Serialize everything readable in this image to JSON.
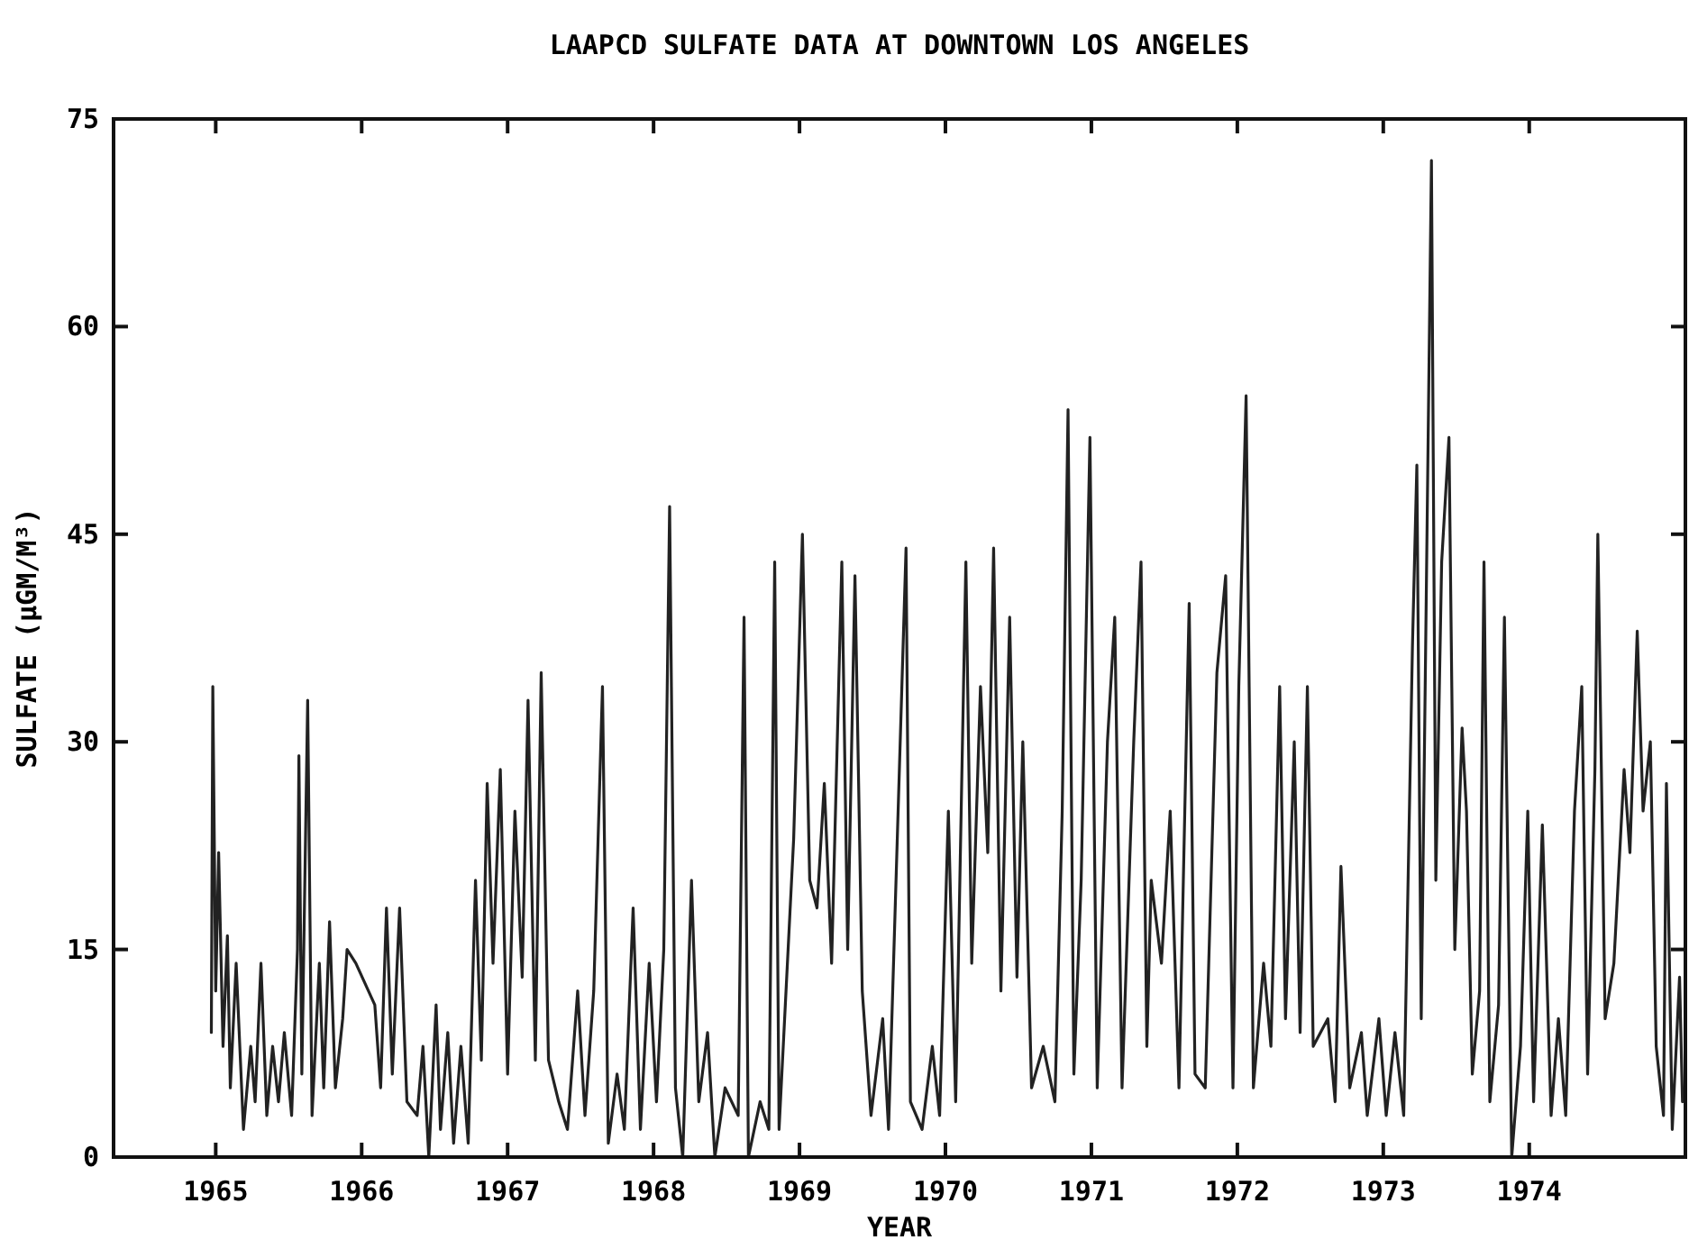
{
  "chart_data": {
    "type": "line",
    "title": "LAAPCD SULFATE DATA AT DOWNTOWN LOS ANGELES",
    "xlabel": "YEAR",
    "ylabel": "SULFATE (μGM/M³)",
    "xlim": [
      1964.3,
      1975.07
    ],
    "xticks": [
      {
        "value": 1965,
        "label": "1965"
      },
      {
        "value": 1966,
        "label": "1966"
      },
      {
        "value": 1967,
        "label": "1967"
      },
      {
        "value": 1968,
        "label": "1968"
      },
      {
        "value": 1969,
        "label": "1969"
      },
      {
        "value": 1970,
        "label": "1970"
      },
      {
        "value": 1971,
        "label": "1971"
      },
      {
        "value": 1972,
        "label": "1972"
      },
      {
        "value": 1973,
        "label": "1973"
      },
      {
        "value": 1974,
        "label": "1974"
      }
    ],
    "ylim": [
      0,
      75
    ],
    "yticks": [
      0,
      15,
      30,
      45,
      60,
      75
    ],
    "grid": false,
    "marker": "none",
    "line_style": "solid",
    "x": [
      1964.97,
      1964.98,
      1965.0,
      1965.02,
      1965.05,
      1965.08,
      1965.1,
      1965.14,
      1965.19,
      1965.24,
      1965.27,
      1965.31,
      1965.35,
      1965.39,
      1965.43,
      1965.47,
      1965.52,
      1965.56,
      1965.57,
      1965.59,
      1965.63,
      1965.66,
      1965.71,
      1965.74,
      1965.78,
      1965.82,
      1965.87,
      1965.9,
      1965.96,
      1966.09,
      1966.13,
      1966.17,
      1966.21,
      1966.26,
      1966.31,
      1966.38,
      1966.42,
      1966.46,
      1966.51,
      1966.54,
      1966.59,
      1966.63,
      1966.68,
      1966.73,
      1966.78,
      1966.82,
      1966.86,
      1966.9,
      1966.95,
      1967.0,
      1967.05,
      1967.1,
      1967.14,
      1967.19,
      1967.23,
      1967.28,
      1967.35,
      1967.41,
      1967.48,
      1967.53,
      1967.59,
      1967.65,
      1967.69,
      1967.75,
      1967.8,
      1967.86,
      1967.91,
      1967.97,
      1968.02,
      1968.07,
      1968.11,
      1968.15,
      1968.2,
      1968.26,
      1968.31,
      1968.37,
      1968.42,
      1968.49,
      1968.58,
      1968.62,
      1968.65,
      1968.73,
      1968.79,
      1968.83,
      1968.86,
      1968.96,
      1969.02,
      1969.07,
      1969.12,
      1969.17,
      1969.22,
      1969.29,
      1969.33,
      1969.38,
      1969.43,
      1969.49,
      1969.57,
      1969.61,
      1969.73,
      1969.76,
      1969.84,
      1969.91,
      1969.96,
      1970.02,
      1970.07,
      1970.14,
      1970.18,
      1970.24,
      1970.29,
      1970.33,
      1970.38,
      1970.44,
      1970.49,
      1970.53,
      1970.59,
      1970.67,
      1970.75,
      1970.8,
      1970.84,
      1970.88,
      1970.93,
      1970.99,
      1971.04,
      1971.11,
      1971.16,
      1971.21,
      1971.29,
      1971.34,
      1971.38,
      1971.41,
      1971.48,
      1971.54,
      1971.6,
      1971.67,
      1971.71,
      1971.78,
      1971.86,
      1971.92,
      1971.97,
      1972.01,
      1972.06,
      1972.11,
      1972.18,
      1972.23,
      1972.29,
      1972.33,
      1972.39,
      1972.43,
      1972.48,
      1972.52,
      1972.62,
      1972.67,
      1972.71,
      1972.77,
      1972.85,
      1972.89,
      1972.97,
      1973.02,
      1973.08,
      1973.14,
      1973.2,
      1973.23,
      1973.26,
      1973.33,
      1973.36,
      1973.4,
      1973.45,
      1973.49,
      1973.54,
      1973.57,
      1973.61,
      1973.66,
      1973.69,
      1973.73,
      1973.79,
      1973.83,
      1973.88,
      1973.94,
      1973.99,
      1974.03,
      1974.09,
      1974.15,
      1974.2,
      1974.25,
      1974.31,
      1974.36,
      1974.4,
      1974.45,
      1974.47,
      1974.52,
      1974.58,
      1974.65,
      1974.69,
      1974.74,
      1974.78,
      1974.83,
      1974.87,
      1974.92,
      1974.94,
      1974.98,
      1975.03,
      1975.05
    ],
    "series": [
      {
        "color": "#222222",
        "values": [
          9,
          34,
          12,
          22,
          8,
          16,
          5,
          14,
          2,
          8,
          4,
          14,
          3,
          8,
          4,
          9,
          3,
          15,
          29,
          6,
          33,
          3,
          14,
          5,
          17,
          5,
          10,
          15,
          14,
          11,
          5,
          18,
          6,
          18,
          4,
          3,
          8,
          0,
          11,
          2,
          9,
          1,
          8,
          1,
          20,
          7,
          27,
          14,
          28,
          6,
          25,
          13,
          33,
          7,
          35,
          7,
          4,
          2,
          12,
          3,
          12,
          34,
          1,
          6,
          2,
          18,
          2,
          14,
          4,
          15,
          47,
          5,
          0,
          20,
          4,
          9,
          0,
          5,
          3,
          39,
          0,
          4,
          2,
          43,
          2,
          23,
          45,
          20,
          18,
          27,
          14,
          43,
          15,
          42,
          12,
          3,
          10,
          2,
          44,
          4,
          2,
          8,
          3,
          25,
          4,
          43,
          14,
          34,
          22,
          44,
          12,
          39,
          13,
          30,
          5,
          8,
          4,
          25,
          54,
          6,
          20,
          52,
          5,
          30,
          39,
          5,
          30,
          43,
          8,
          20,
          14,
          25,
          5,
          40,
          6,
          5,
          35,
          42,
          5,
          34,
          55,
          5,
          14,
          8,
          34,
          10,
          30,
          9,
          34,
          8,
          10,
          4,
          21,
          5,
          9,
          3,
          10,
          3,
          9,
          3,
          37,
          50,
          10,
          72,
          20,
          43,
          52,
          15,
          31,
          25,
          6,
          12,
          43,
          4,
          11,
          39,
          0,
          8,
          25,
          4,
          24,
          3,
          10,
          3,
          25,
          34,
          6,
          28,
          45,
          10,
          14,
          28,
          22,
          38,
          25,
          30,
          8,
          3,
          27,
          2,
          13,
          4
        ]
      }
    ]
  }
}
